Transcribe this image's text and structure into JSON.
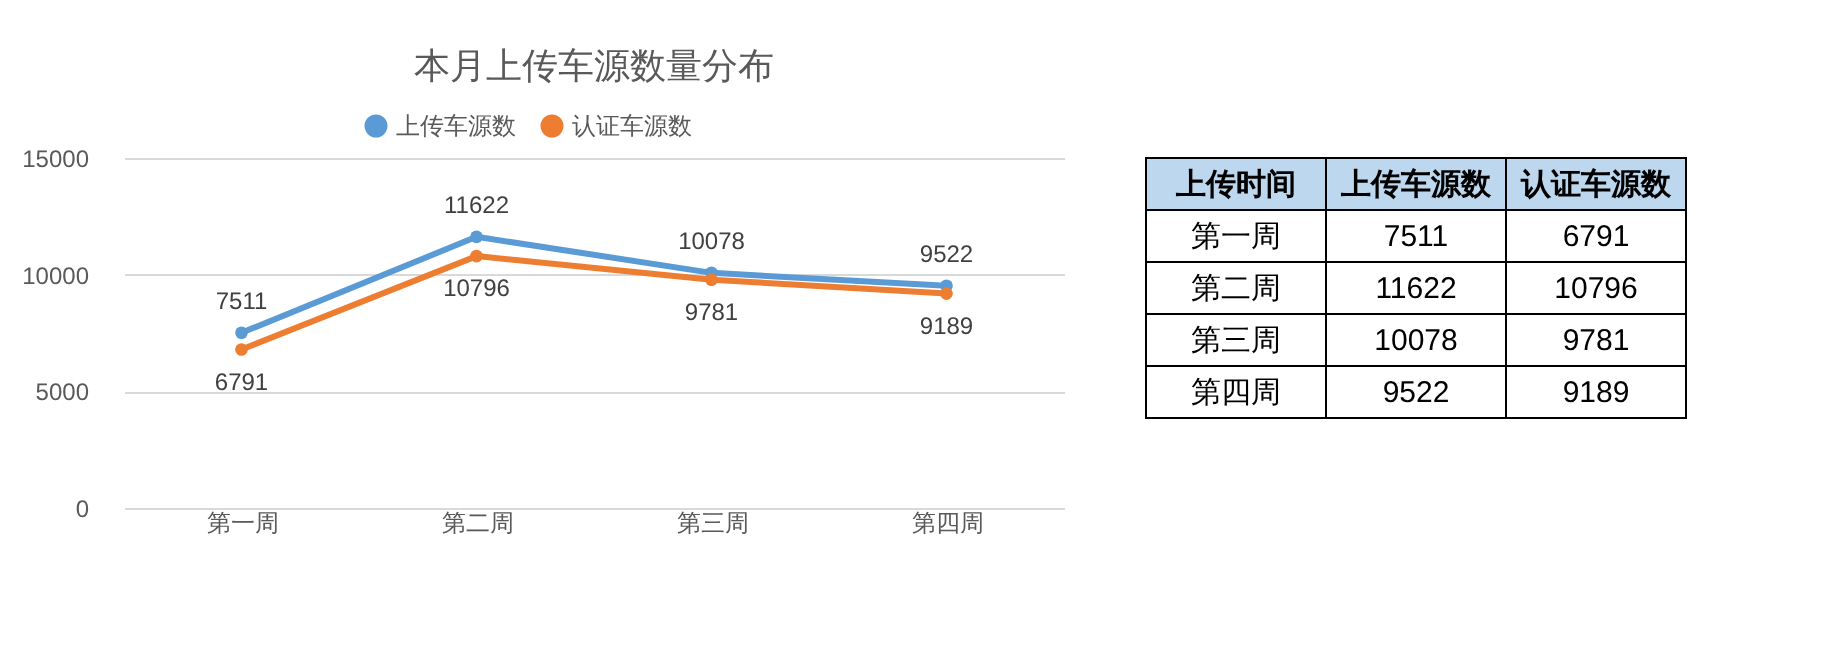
{
  "chart_data": [
    {
      "type": "line",
      "title": "本月上传车源数量分布",
      "categories": [
        "第一周",
        "第二周",
        "第三周",
        "第四周"
      ],
      "series": [
        {
          "name": "上传车源数",
          "color": "#5b9bd5",
          "values": [
            7511,
            11622,
            10078,
            9522
          ]
        },
        {
          "name": "认证车源数",
          "color": "#ed7d31",
          "values": [
            6791,
            10796,
            9781,
            9189
          ]
        }
      ],
      "ylim": [
        0,
        15000
      ],
      "yticks": [
        0,
        5000,
        10000,
        15000
      ],
      "grid": "y",
      "legend": "top",
      "marker": "circle",
      "line_style": "solid",
      "data_labels": true
    },
    {
      "type": "other",
      "annotations": [
        "上传时间"
      ],
      "data_labels": true,
      "categories": [
        "第一周",
        "第二周",
        "第三周",
        "第四周"
      ],
      "series": [
        {
          "name": "上传车源数",
          "values": [
            7511,
            11622,
            10078,
            9522
          ]
        },
        {
          "name": "认证车源数",
          "values": [
            6791,
            10796,
            9781,
            9189
          ]
        }
      ]
    }
  ]
}
